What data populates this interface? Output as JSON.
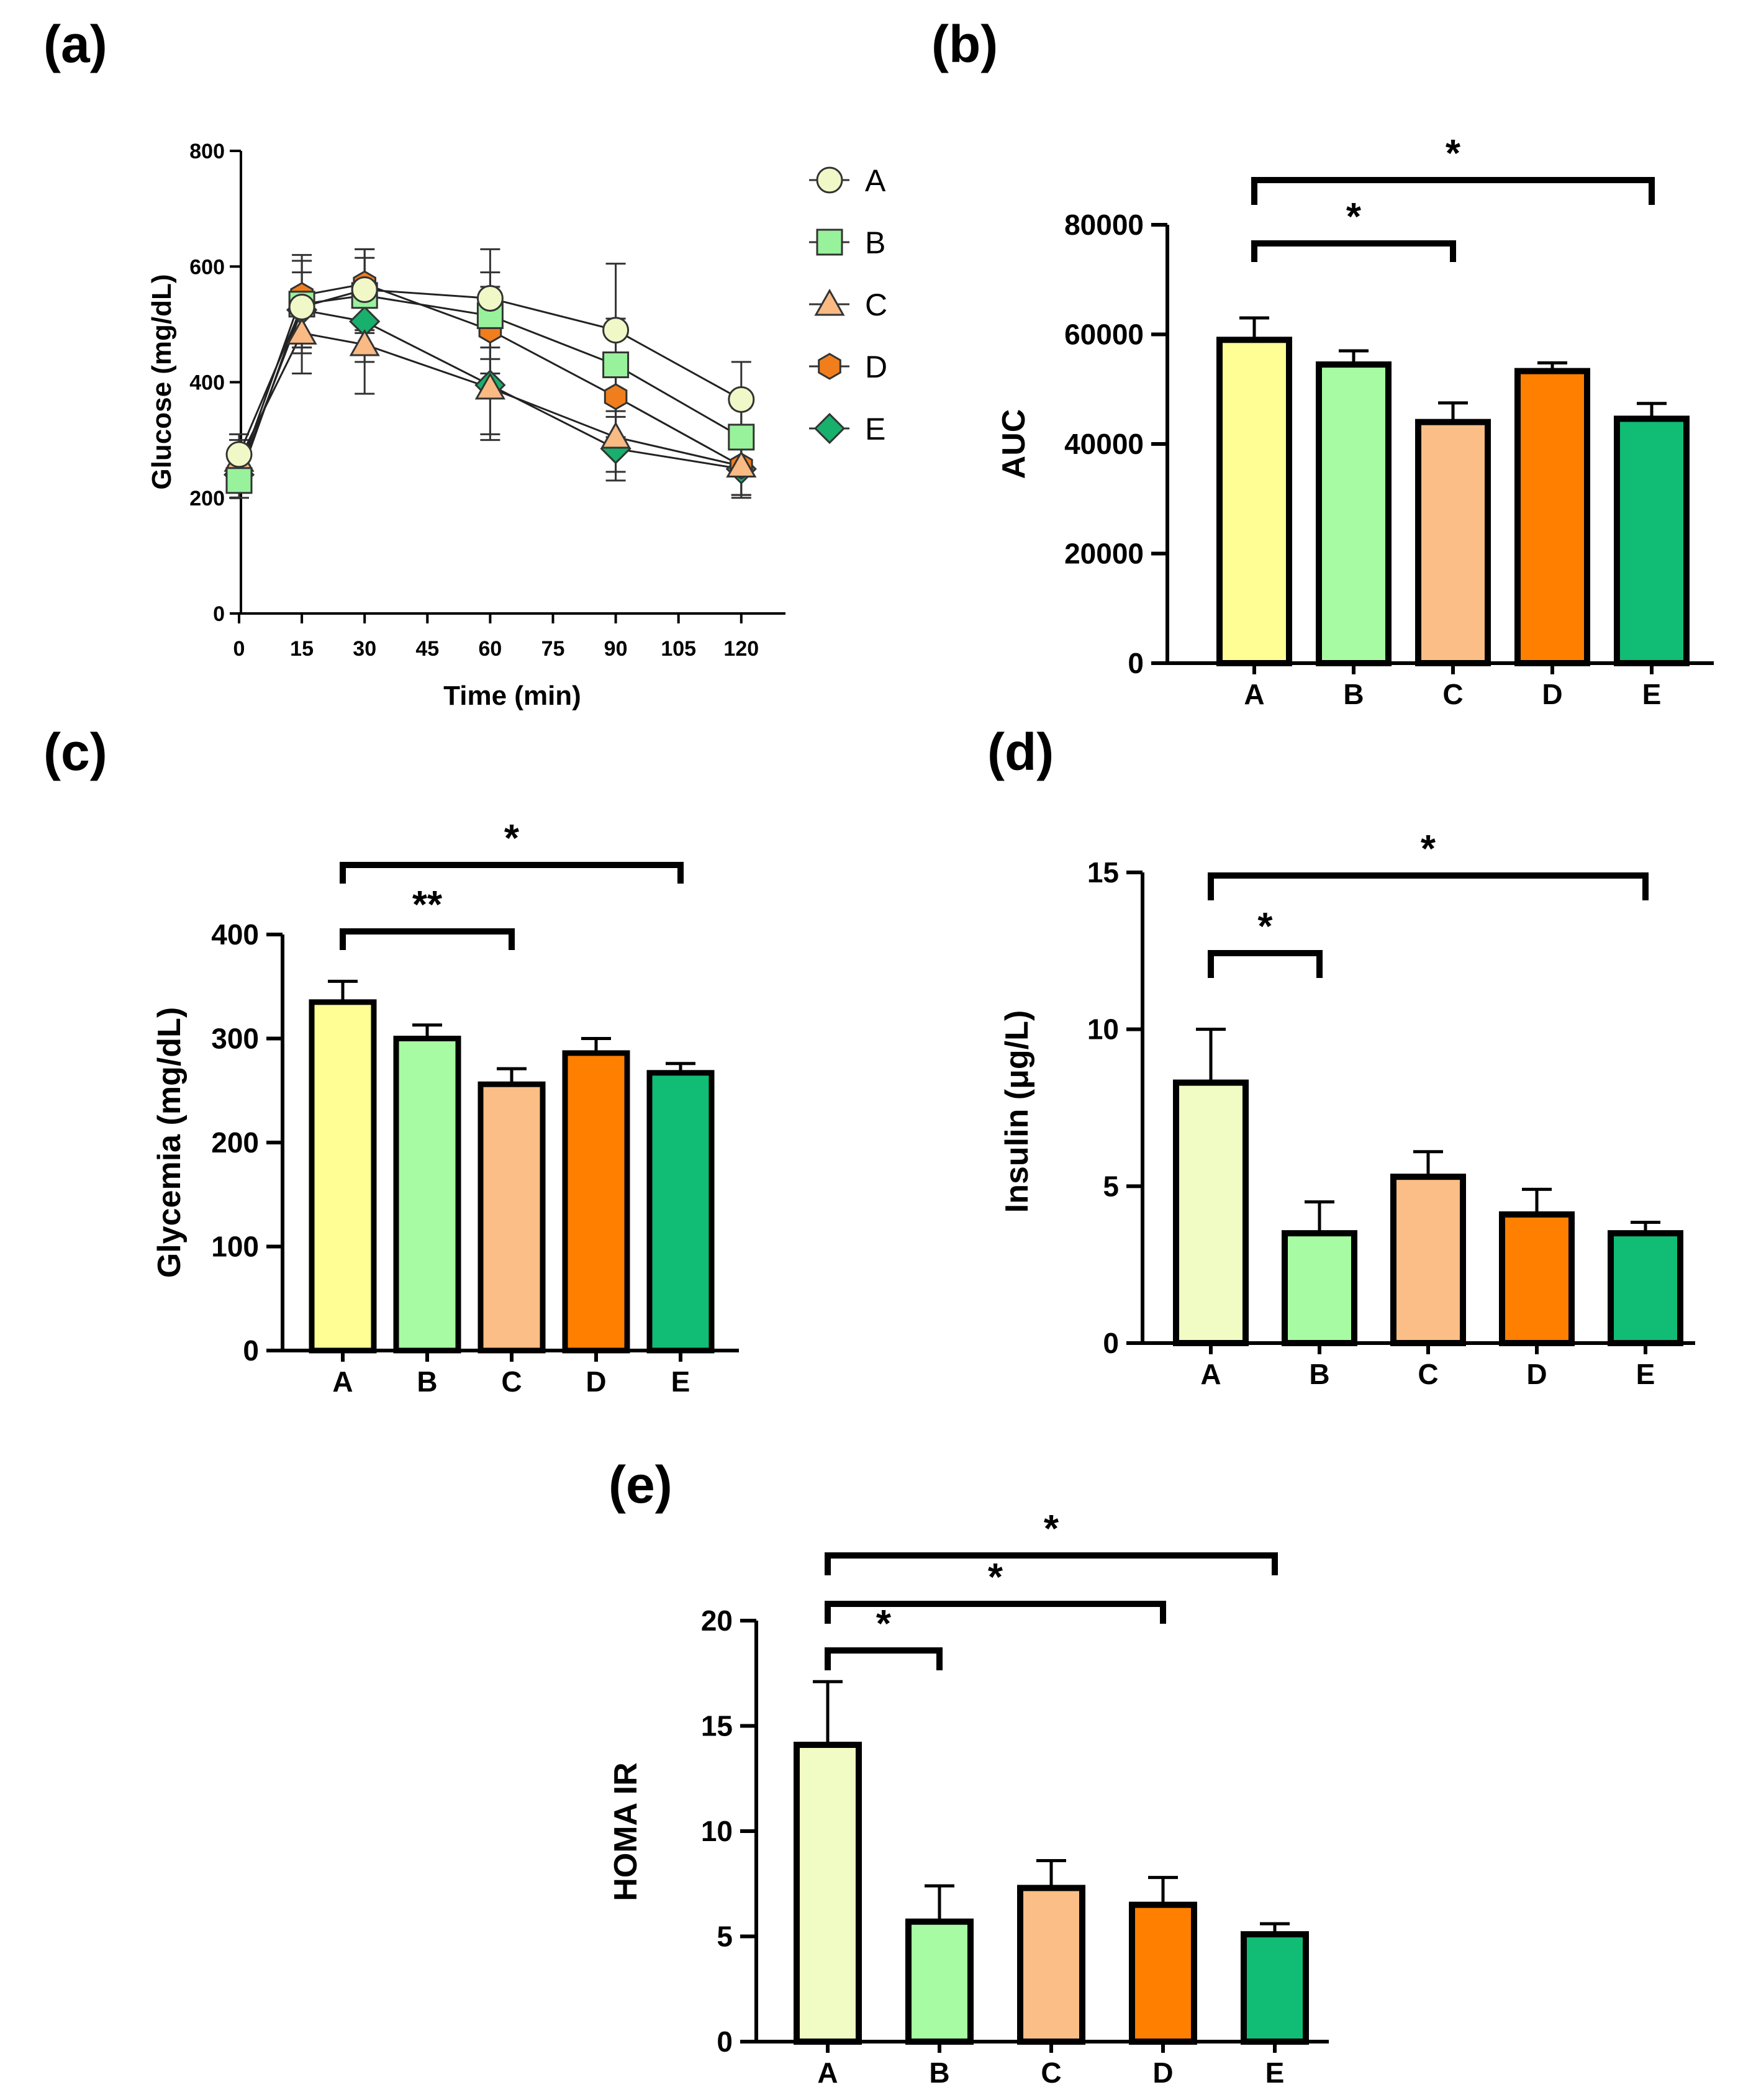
{
  "panel_labels": [
    "(a)",
    "(b)",
    "(c)",
    "(d)",
    "(e)"
  ],
  "chart_data": [
    {
      "panel": "(a)",
      "type": "line",
      "xlabel": "Time (min)",
      "ylabel": "Glucose (mg/dL)",
      "x": [
        0,
        15,
        30,
        60,
        90,
        120
      ],
      "xticks": [
        0,
        15,
        30,
        45,
        60,
        75,
        90,
        105,
        120
      ],
      "yticks": [
        0,
        200,
        400,
        600,
        800
      ],
      "xlim": [
        0,
        130
      ],
      "ylim": [
        0,
        800
      ],
      "legend_position": "right",
      "series": [
        {
          "name": "A",
          "marker": "circle",
          "color": "#f1f8c8",
          "values": [
            275,
            530,
            560,
            545,
            490,
            370
          ],
          "errors": [
            35,
            80,
            70,
            85,
            115,
            65
          ]
        },
        {
          "name": "B",
          "marker": "square",
          "color": "#98f29c",
          "values": [
            230,
            535,
            550,
            515,
            430,
            305
          ],
          "errors": [
            30,
            75,
            65,
            75,
            80,
            50
          ]
        },
        {
          "name": "C",
          "marker": "triangle",
          "color": "#f9ba84",
          "values": [
            265,
            485,
            465,
            390,
            305,
            255
          ],
          "errors": [
            35,
            70,
            85,
            90,
            60,
            50
          ]
        },
        {
          "name": "D",
          "marker": "hexagon",
          "color": "#f07e1d",
          "values": [
            245,
            550,
            570,
            490,
            375,
            255
          ],
          "errors": [
            35,
            70,
            60,
            75,
            70,
            55
          ]
        },
        {
          "name": "E",
          "marker": "diamond",
          "color": "#17b06c",
          "values": [
            240,
            525,
            505,
            395,
            285,
            250
          ],
          "errors": [
            30,
            65,
            70,
            85,
            55,
            45
          ]
        }
      ]
    },
    {
      "panel": "(b)",
      "type": "bar",
      "ylabel": "AUC",
      "categories": [
        "A",
        "B",
        "C",
        "D",
        "E"
      ],
      "values": [
        59000,
        54500,
        44000,
        53300,
        44600
      ],
      "errors": [
        4000,
        2500,
        3500,
        1500,
        2800
      ],
      "colors": [
        "#fefe94",
        "#a7fba2",
        "#fbbe86",
        "#ff7f00",
        "#11bc74"
      ],
      "yticks": [
        0,
        20000,
        40000,
        60000,
        80000
      ],
      "ylim": [
        0,
        80000
      ],
      "significance": [
        {
          "from": "A",
          "to": "C",
          "label": "*"
        },
        {
          "from": "A",
          "to": "E",
          "label": "*"
        }
      ]
    },
    {
      "panel": "(c)",
      "type": "bar",
      "ylabel": "Glycemia (mg/dL)",
      "categories": [
        "A",
        "B",
        "C",
        "D",
        "E"
      ],
      "values": [
        335,
        300,
        256,
        286,
        267
      ],
      "errors": [
        20,
        13,
        15,
        14,
        9
      ],
      "colors": [
        "#fefe94",
        "#a7fba2",
        "#fbbe86",
        "#ff7f00",
        "#11bc74"
      ],
      "yticks": [
        0,
        100,
        200,
        300,
        400
      ],
      "ylim": [
        0,
        400
      ],
      "significance": [
        {
          "from": "A",
          "to": "C",
          "label": "**"
        },
        {
          "from": "A",
          "to": "E",
          "label": "*"
        }
      ]
    },
    {
      "panel": "(d)",
      "type": "bar",
      "ylabel": "Insulin (μg/L)",
      "categories": [
        "A",
        "B",
        "C",
        "D",
        "E"
      ],
      "values": [
        8.3,
        3.5,
        5.3,
        4.1,
        3.5
      ],
      "errors": [
        1.7,
        1.0,
        0.8,
        0.8,
        0.35
      ],
      "colors": [
        "#f1fbc4",
        "#a7fba2",
        "#fbbe86",
        "#ff7f00",
        "#11bc74"
      ],
      "yticks": [
        0,
        5,
        10,
        15
      ],
      "ylim": [
        0,
        15
      ],
      "significance": [
        {
          "from": "A",
          "to": "B",
          "label": "*"
        },
        {
          "from": "A",
          "to": "E",
          "label": "*"
        }
      ]
    },
    {
      "panel": "(e)",
      "type": "bar",
      "ylabel": "HOMA IR",
      "categories": [
        "A",
        "B",
        "C",
        "D",
        "E"
      ],
      "values": [
        14.1,
        5.7,
        7.3,
        6.5,
        5.1
      ],
      "errors": [
        3.0,
        1.7,
        1.3,
        1.3,
        0.5
      ],
      "colors": [
        "#f1fbc4",
        "#a7fba2",
        "#fbbe86",
        "#ff7f00",
        "#11bc74"
      ],
      "yticks": [
        0,
        5,
        10,
        15,
        20
      ],
      "ylim": [
        0,
        20
      ],
      "significance": [
        {
          "from": "A",
          "to": "B",
          "label": "*"
        },
        {
          "from": "A",
          "to": "D",
          "label": "*"
        },
        {
          "from": "A",
          "to": "E",
          "label": "*"
        }
      ]
    }
  ]
}
